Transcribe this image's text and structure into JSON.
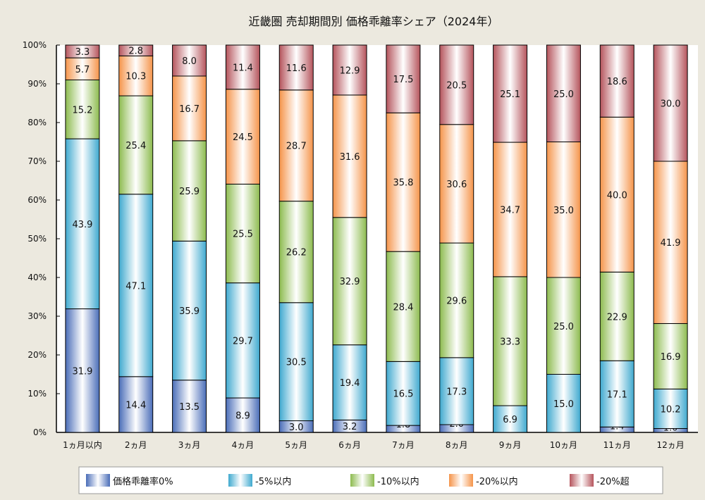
{
  "chart_data": {
    "type": "bar",
    "stacked": true,
    "title": "近畿圏 売却期間別 価格乖離率シェア（2024年）",
    "categories": [
      "1ヵ月以内",
      "2ヵ月",
      "3ヵ月",
      "4ヵ月",
      "5ヵ月",
      "6ヵ月",
      "7ヵ月",
      "8ヵ月",
      "9ヵ月",
      "10ヵ月",
      "11ヵ月",
      "12ヵ月"
    ],
    "ylim": [
      0,
      100
    ],
    "yticks": [
      "0%",
      "10%",
      "20%",
      "30%",
      "40%",
      "50%",
      "60%",
      "70%",
      "80%",
      "90%",
      "100%"
    ],
    "grid": false,
    "legend_position": "bottom",
    "series": [
      {
        "name": "価格乖離率0%",
        "color": "#4a6db8",
        "values": [
          31.9,
          14.4,
          13.5,
          8.9,
          3.0,
          3.2,
          1.8,
          2.0,
          0,
          0,
          1.4,
          1.0
        ]
      },
      {
        "name": "-5%以内",
        "color": "#3fa9cf",
        "values": [
          43.9,
          47.1,
          35.9,
          29.7,
          30.5,
          19.4,
          16.5,
          17.3,
          6.9,
          15.0,
          17.1,
          10.2
        ]
      },
      {
        "name": "-10%以内",
        "color": "#8dbb4f",
        "values": [
          15.2,
          25.4,
          25.9,
          25.5,
          26.2,
          32.9,
          28.4,
          29.6,
          33.3,
          25.0,
          22.9,
          16.9
        ]
      },
      {
        "name": "-20%以内",
        "color": "#f5944a",
        "values": [
          5.7,
          10.3,
          16.7,
          24.5,
          28.7,
          31.6,
          35.8,
          30.6,
          34.7,
          35.0,
          40.0,
          41.9
        ]
      },
      {
        "name": "-20%超",
        "color": "#b5545c",
        "values": [
          3.3,
          2.8,
          8.0,
          11.4,
          11.6,
          12.9,
          17.5,
          20.5,
          25.1,
          25.0,
          18.6,
          30.0
        ]
      }
    ]
  }
}
